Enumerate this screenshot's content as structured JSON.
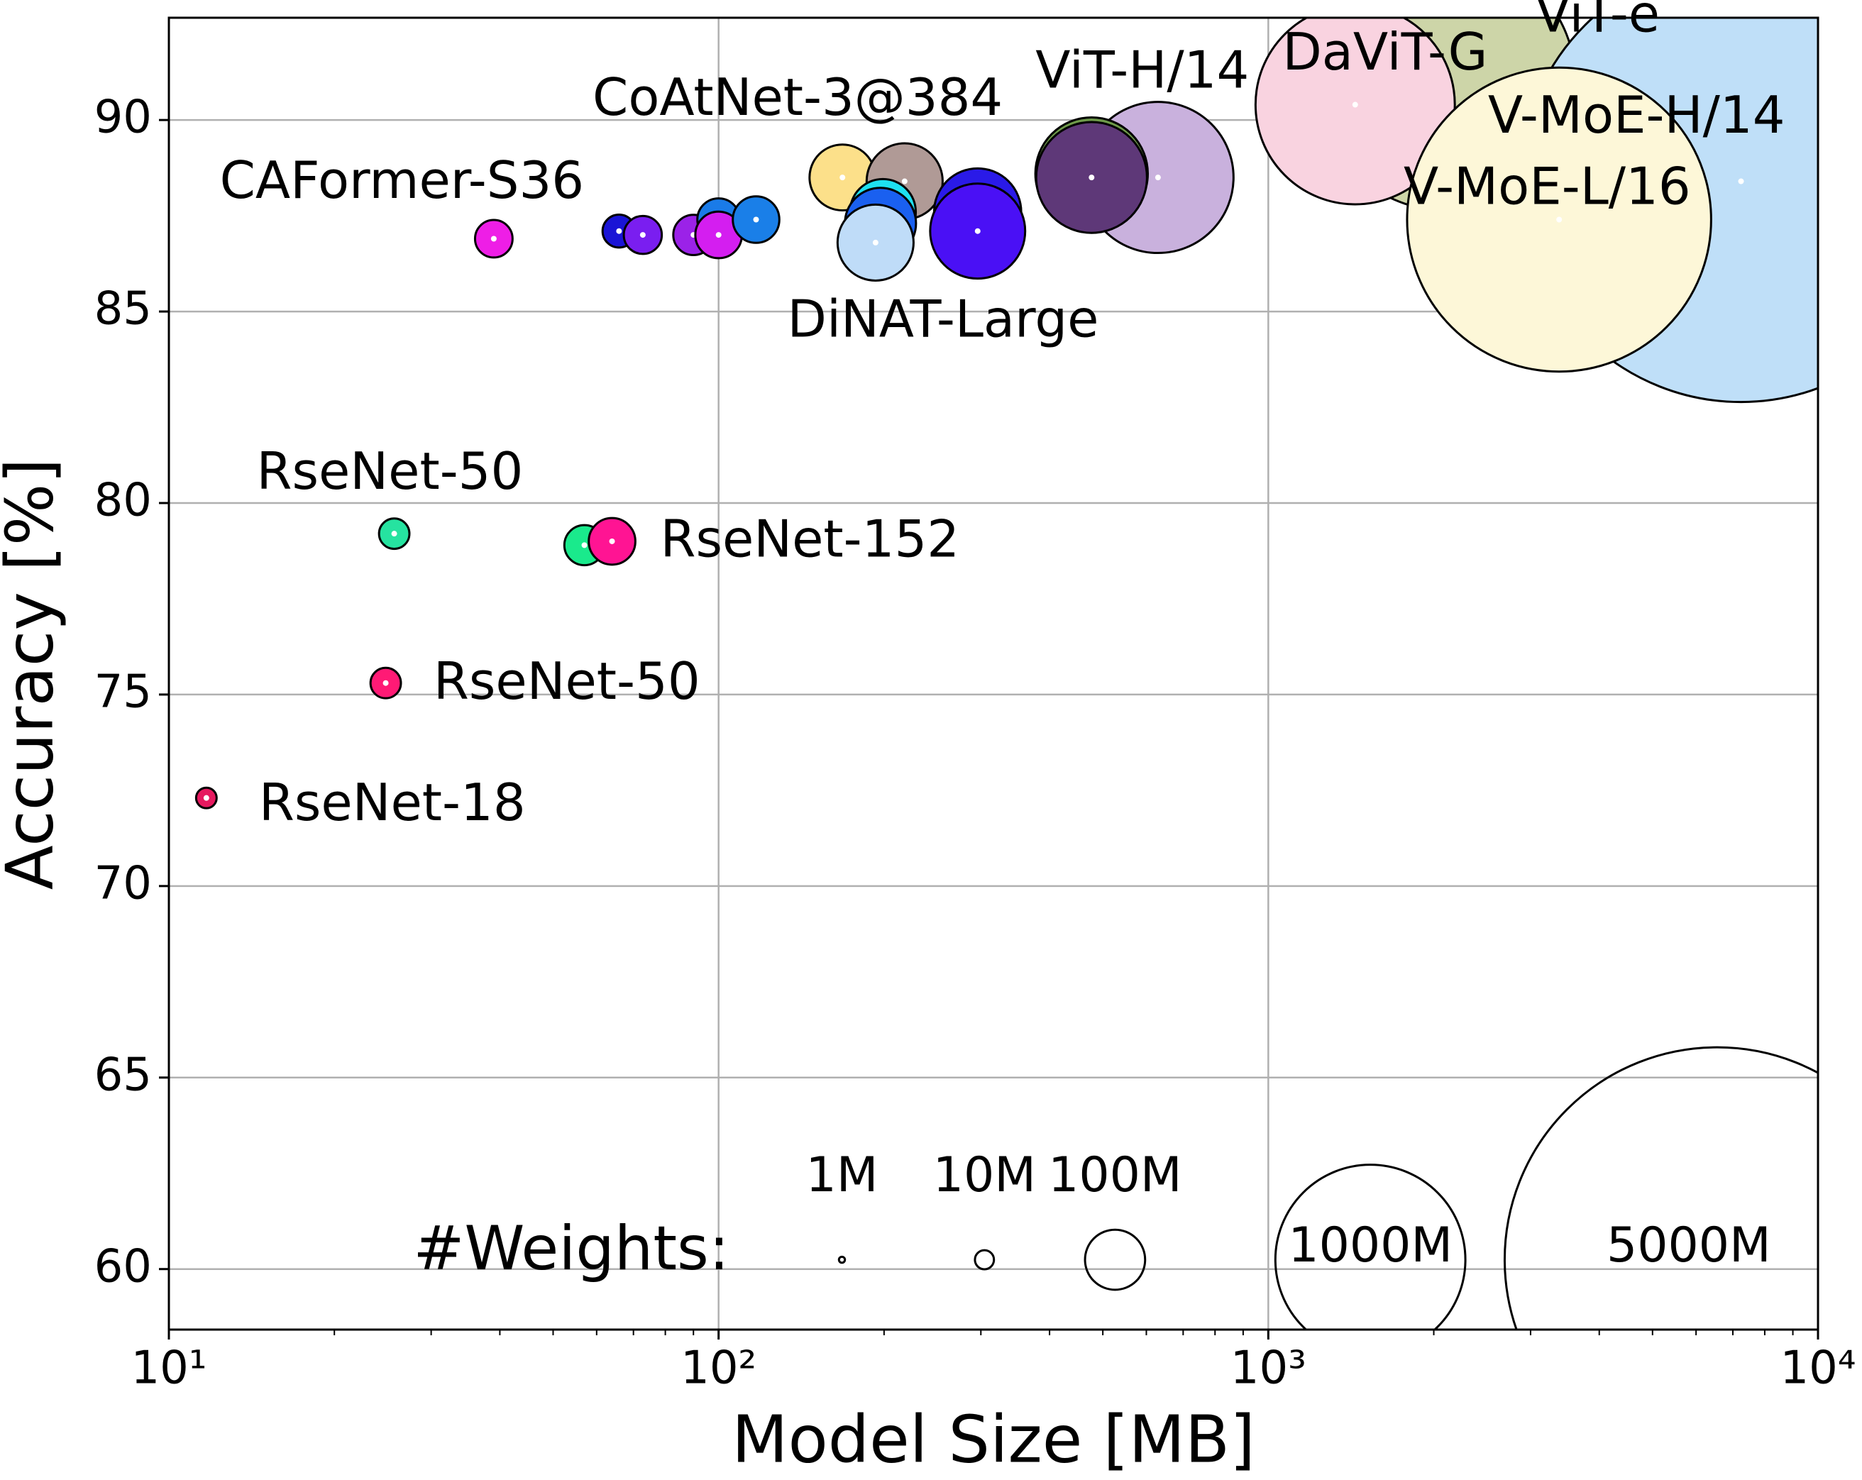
{
  "chart_data": {
    "type": "bubble",
    "x_label": "Model Size [MB]",
    "y_label": "Accuracy [%]",
    "x": [
      11.7,
      24.8,
      25.7,
      57,
      64,
      39,
      65.9,
      72.8,
      90,
      100,
      100,
      117,
      168,
      218,
      199,
      197,
      296,
      296,
      630,
      477,
      477,
      193,
      2110,
      7244,
      1439,
      3381
    ],
    "values": [
      72.3,
      75.3,
      79.2,
      78.9,
      79.0,
      86.9,
      87.1,
      87.0,
      87.0,
      87.4,
      87.0,
      87.4,
      88.5,
      88.4,
      87.6,
      87.3,
      87.6,
      87.1,
      88.5,
      88.6,
      88.5,
      86.8,
      91.0,
      88.4,
      90.4,
      87.4
    ],
    "sizes": [
      11.7,
      25.6,
      25.6,
      44.5,
      60.2,
      39,
      30,
      40,
      45,
      50,
      60,
      60,
      120,
      160,
      120,
      140,
      210,
      250,
      632,
      350,
      340,
      160,
      1843,
      5400,
      1100,
      2560
    ],
    "colors": [
      "#e6195f",
      "#ff1a75",
      "#26e3a0",
      "#1aea8c",
      "#ff1493",
      "#ee1ee6",
      "#1a14d6",
      "#7a1ef0",
      "#9b22e8",
      "#1a7be8",
      "#d41ef0",
      "#1a7fe8",
      "#fce08a",
      "#b09a96",
      "#1ee0f0",
      "#1a60f0",
      "#2a1ae8",
      "#4a10f5",
      "#c9b1dd",
      "#6e9a4a",
      "#5e3878",
      "#bfdcf8",
      "#cdd5a8",
      "#bfdff8",
      "#f9d3e0",
      "#fdf7d8"
    ],
    "labels": [
      "RseNet-18",
      "RseNet-50",
      "RseNet-50",
      null,
      "RseNet-152",
      "CAFormer-S36",
      null,
      null,
      null,
      null,
      null,
      null,
      "CoAtNet-3@384",
      null,
      null,
      null,
      null,
      null,
      "ViT-H/14",
      null,
      null,
      "DiNAT-Large",
      null,
      "ViT-e",
      "DaViT-G",
      "V-MoE-L/16"
    ],
    "annotations": [
      "V-MoE-H/14"
    ],
    "xlim": [
      10,
      10000
    ],
    "ylim": [
      58.42,
      92.67
    ],
    "log_x": true,
    "xticks": [
      {
        "value": 10,
        "label": "10¹"
      },
      {
        "value": 100,
        "label": "10²"
      },
      {
        "value": 1000,
        "label": "10³"
      },
      {
        "value": 10000,
        "label": "10⁴"
      }
    ],
    "yticks": [
      60,
      65,
      70,
      75,
      80,
      85,
      90
    ],
    "grid": true,
    "size_legend": {
      "title": "#Weights:",
      "sizes": [
        1,
        10,
        100,
        1000,
        5000
      ],
      "labels": [
        "1M",
        "10M",
        "100M",
        "1000M",
        "5000M"
      ]
    }
  }
}
